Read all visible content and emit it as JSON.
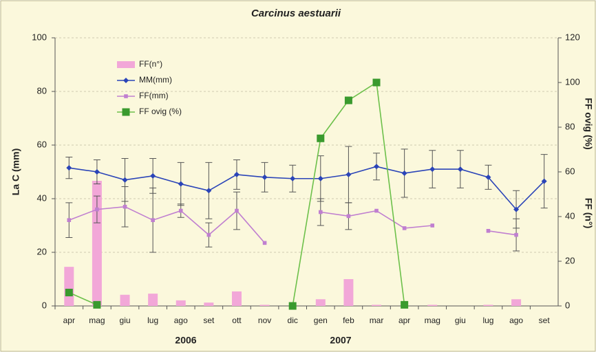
{
  "chart_data": {
    "type": "combo",
    "title": "Carcinus aestuarii",
    "y_label": "La C (mm)",
    "y2_labels": [
      "FF ovig (%)",
      "FF (n°)"
    ],
    "year_labels": [
      "2006",
      "2007"
    ],
    "categories": [
      "apr",
      "mag",
      "giu",
      "lug",
      "ago",
      "set",
      "ott",
      "nov",
      "dic",
      "gen",
      "feb",
      "mar",
      "apr",
      "mag",
      "giu",
      "lug",
      "ago",
      "set"
    ],
    "ylim": [
      0,
      100
    ],
    "yticks": [
      0,
      20,
      40,
      60,
      80,
      100
    ],
    "y2lim": [
      0,
      120
    ],
    "y2ticks": [
      0,
      20,
      40,
      60,
      80,
      100,
      120
    ],
    "grid": true,
    "series": [
      {
        "name": "FF(n°)",
        "type": "bar",
        "axis": "y2",
        "color": "#f2a7d8",
        "values": [
          17.5,
          56,
          5,
          5.5,
          2.5,
          1.5,
          6.5,
          0.5,
          0,
          3,
          12,
          0.5,
          0,
          0.5,
          0,
          0.5,
          3,
          0
        ]
      },
      {
        "name": "MM(mm)",
        "type": "line",
        "axis": "y",
        "color": "#2a44b8",
        "marker": "diamond",
        "values": [
          51.5,
          50,
          47,
          48.5,
          45.5,
          43,
          49,
          48,
          47.5,
          47.5,
          49,
          52,
          49.5,
          51,
          51,
          48,
          36,
          46.5
        ],
        "errors": [
          4,
          4.5,
          8,
          6.5,
          8,
          10.5,
          5.5,
          5.5,
          5,
          8.5,
          10.5,
          5,
          9,
          7,
          7,
          4.5,
          7,
          10
        ]
      },
      {
        "name": "FF(mm)",
        "type": "line",
        "axis": "y",
        "color": "#c07fd0",
        "marker": "square",
        "values": [
          32,
          36,
          37,
          32,
          35.5,
          26.5,
          35.5,
          23.5,
          null,
          35,
          33.5,
          35.5,
          29,
          30,
          null,
          28,
          26.5,
          null
        ],
        "errors": [
          6.5,
          5,
          7.5,
          12,
          2.5,
          4.5,
          7,
          null,
          null,
          5,
          5,
          null,
          null,
          null,
          null,
          null,
          6,
          null
        ]
      },
      {
        "name": "FF ovig (%)",
        "type": "line",
        "axis": "y2",
        "color": "#6cc04a",
        "marker": "bigsquare",
        "values": [
          6,
          0.5,
          null,
          null,
          null,
          null,
          null,
          null,
          0,
          75,
          92,
          100,
          0.5,
          null,
          null,
          null,
          null,
          null
        ]
      }
    ]
  }
}
